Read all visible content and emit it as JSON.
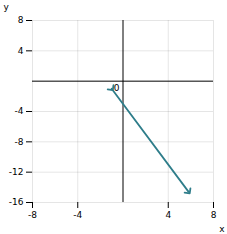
{
  "chart_data": {
    "type": "line",
    "x": [
      -1,
      5.8
    ],
    "values": [
      -1,
      -14.6
    ],
    "color": "#2e7d8a",
    "marker": "arrow",
    "xlabel": "x",
    "ylabel": "y",
    "xlim": [
      -8,
      8
    ],
    "xticks": [
      -8,
      -4,
      4,
      8
    ],
    "ylim": [
      -16,
      8
    ],
    "yticks": [
      -16,
      -12,
      -8,
      -4,
      4,
      8
    ],
    "grid": true,
    "annotations": [
      {
        "text": "0",
        "x": -0.3,
        "y": -0.5
      }
    ]
  }
}
